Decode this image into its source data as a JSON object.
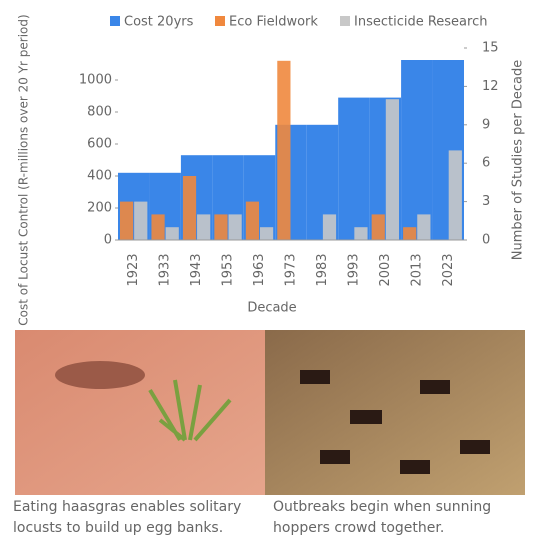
{
  "chart_data": {
    "type": "bar",
    "categories": [
      "1923",
      "1933",
      "1943",
      "1953",
      "1963",
      "1973",
      "1983",
      "1993",
      "2003",
      "2013",
      "2023"
    ],
    "series": [
      {
        "name": "Cost  20yrs",
        "color": "#3a86e8",
        "values": [
          420,
          420,
          530,
          530,
          530,
          720,
          720,
          890,
          890,
          1125,
          1125
        ]
      },
      {
        "name": "Eco Fieldwork",
        "color": "#f0883e",
        "axis": "y2",
        "values": [
          3,
          2,
          5,
          2,
          3,
          14,
          0,
          0,
          2,
          1,
          0
        ]
      },
      {
        "name": "Insecticide Research",
        "color": "#c8c8c8",
        "axis": "y2",
        "values": [
          3,
          1,
          2,
          2,
          1,
          0,
          2,
          1,
          11,
          2,
          7
        ]
      }
    ],
    "xlabel": "Decade",
    "ylabel": "Cost of Locust Control (R-millions over 20 Yr period)",
    "y2label": "Number of Studies per Decade",
    "ylim": [
      0,
      1200
    ],
    "yticks": [
      0,
      200,
      400,
      600,
      800,
      1000
    ],
    "y2lim": [
      0,
      15
    ],
    "y2ticks": [
      0,
      3,
      6,
      9,
      12,
      15
    ]
  },
  "captions": [
    "Eating haasgras enables solitary locusts to build up egg banks.",
    "Outbreaks begin when sunning hoppers crowd together."
  ]
}
